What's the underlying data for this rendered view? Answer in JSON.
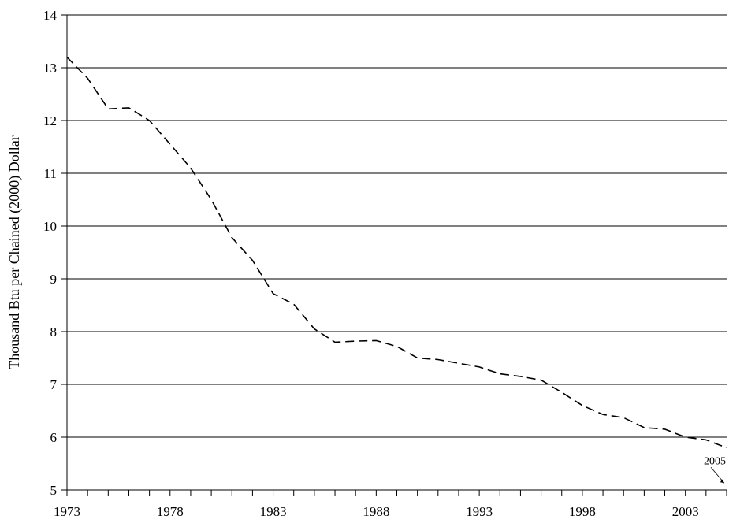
{
  "chart_data": {
    "type": "line",
    "title": "",
    "xlabel": "",
    "ylabel": "Thousand Btu per Chained (2000) Dollar",
    "xlim": [
      1973,
      2005
    ],
    "ylim": [
      5,
      14
    ],
    "x_tick_labels": [
      "1973",
      "1978",
      "1983",
      "1988",
      "1993",
      "1998",
      "2003"
    ],
    "y_tick_labels": [
      "5",
      "6",
      "7",
      "8",
      "9",
      "10",
      "11",
      "12",
      "13",
      "14"
    ],
    "grid": "horizontal",
    "line_style": "dashed",
    "line_color": "#000000",
    "series": [
      {
        "x": [
          1973,
          1974,
          1975,
          1976,
          1977,
          1978,
          1979,
          1980,
          1981,
          1982,
          1983,
          1984,
          1985,
          1986,
          1987,
          1988,
          1989,
          1990,
          1991,
          1992,
          1993,
          1994,
          1995,
          1996,
          1997,
          1998,
          1999,
          2000,
          2001,
          2002,
          2003,
          2004,
          2005
        ],
        "values": [
          13.2,
          12.8,
          12.22,
          12.24,
          12.0,
          11.55,
          11.1,
          10.5,
          9.78,
          9.35,
          8.72,
          8.52,
          8.05,
          7.8,
          7.82,
          7.83,
          7.72,
          7.5,
          7.47,
          7.4,
          7.33,
          7.2,
          7.15,
          7.08,
          6.85,
          6.6,
          6.43,
          6.37,
          6.18,
          6.15,
          6.0,
          5.95,
          5.8
        ]
      }
    ],
    "annotations": [
      {
        "text": "2005",
        "x": 2005,
        "y": 5.1
      }
    ]
  }
}
